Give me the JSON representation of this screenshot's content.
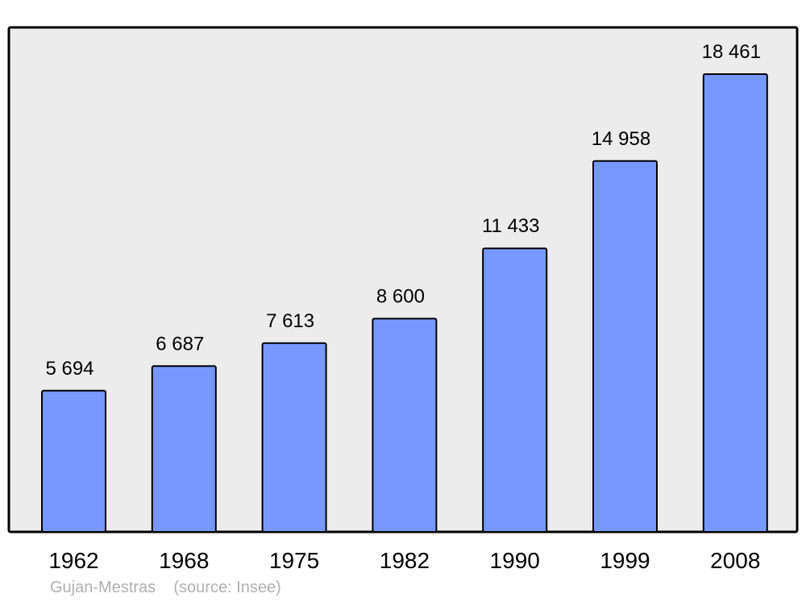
{
  "chart_data": {
    "type": "bar",
    "categories": [
      "1962",
      "1968",
      "1975",
      "1982",
      "1990",
      "1999",
      "2008"
    ],
    "values": [
      5694,
      6687,
      7613,
      8600,
      11433,
      14958,
      18461
    ],
    "value_labels": [
      "5 694",
      "6 687",
      "7 613",
      "8 600",
      "11 433",
      "14 958",
      "18 461"
    ],
    "title": "",
    "xlabel": "",
    "ylabel": "",
    "ylim": [
      0,
      18461
    ],
    "grid": false,
    "bar_color": "#7799ff",
    "plot_background": "#ececec"
  },
  "caption": {
    "place": "Gujan-Mestras",
    "source": "(source: Insee)"
  }
}
